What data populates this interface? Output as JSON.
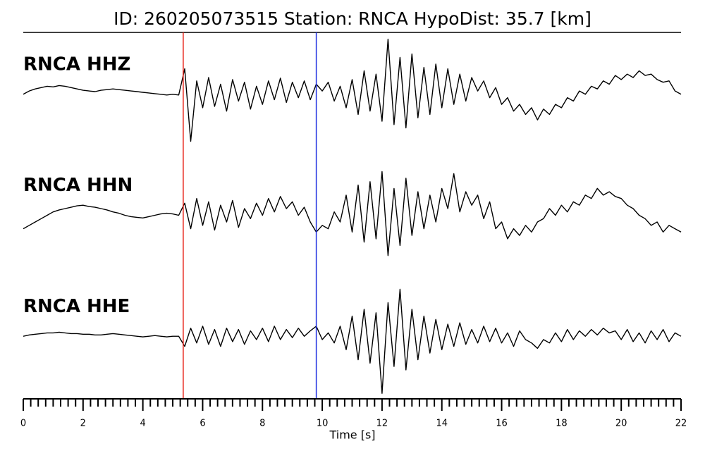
{
  "chart_data": {
    "type": "seismogram",
    "title": "ID: 260205073515   Station: RNCA   HypoDist:    35.7 [km]",
    "xlabel": "Time [s]",
    "xlim": [
      0,
      22
    ],
    "xticks": [
      0,
      2,
      4,
      6,
      8,
      10,
      12,
      14,
      16,
      18,
      20,
      22
    ],
    "xticks_minor": [
      0.25,
      0.5,
      0.75,
      1,
      1.25,
      1.5,
      1.75,
      2.25,
      2.5,
      2.75,
      3,
      3.25,
      3.5,
      3.75,
      4.25,
      4.5,
      4.75,
      5,
      5.25,
      5.5,
      5.75,
      6.25,
      6.5,
      6.75,
      7,
      7.25,
      7.5,
      7.75,
      8.25,
      8.5,
      8.75,
      9,
      9.25,
      9.5,
      9.75,
      10.25,
      10.5,
      10.75,
      11,
      11.25,
      11.5,
      11.75,
      12.25,
      12.5,
      12.75,
      13,
      13.25,
      13.5,
      13.75,
      14.25,
      14.5,
      14.75,
      15,
      15.25,
      15.5,
      15.75,
      16.25,
      16.5,
      16.75,
      17,
      17.25,
      17.5,
      17.75,
      18.25,
      18.5,
      18.75,
      19,
      19.25,
      19.5,
      19.75,
      20.25,
      20.5,
      20.75,
      21,
      21.25,
      21.5,
      21.75
    ],
    "ylim": [
      -90,
      90
    ],
    "label_color": "#4c9a0a",
    "line_color": "#000000",
    "picks": [
      {
        "x": 5.35,
        "color": "#e8261c"
      },
      {
        "x": 9.8,
        "color": "#1f2fe0"
      }
    ],
    "x": [
      0,
      0.2,
      0.4,
      0.6,
      0.8,
      1,
      1.2,
      1.4,
      1.6,
      1.8,
      2,
      2.2,
      2.4,
      2.6,
      2.8,
      3,
      3.2,
      3.4,
      3.6,
      3.8,
      4,
      4.2,
      4.4,
      4.6,
      4.8,
      5,
      5.2,
      5.4,
      5.6,
      5.8,
      6,
      6.2,
      6.4,
      6.6,
      6.8,
      7,
      7.2,
      7.4,
      7.6,
      7.8,
      8,
      8.2,
      8.4,
      8.6,
      8.8,
      9,
      9.2,
      9.4,
      9.6,
      9.8,
      10,
      10.2,
      10.4,
      10.6,
      10.8,
      11,
      11.2,
      11.4,
      11.6,
      11.8,
      12,
      12.2,
      12.4,
      12.6,
      12.8,
      13,
      13.2,
      13.4,
      13.6,
      13.8,
      14,
      14.2,
      14.4,
      14.6,
      14.8,
      15,
      15.2,
      15.4,
      15.6,
      15.8,
      16,
      16.2,
      16.4,
      16.6,
      16.8,
      17,
      17.2,
      17.4,
      17.6,
      17.8,
      18,
      18.2,
      18.4,
      18.6,
      18.8,
      19,
      19.2,
      19.4,
      19.6,
      19.8,
      20,
      20.2,
      20.4,
      20.6,
      20.8,
      21,
      21.2,
      21.4,
      21.6,
      21.8,
      22
    ],
    "series": [
      {
        "name": "RNCA HHZ",
        "values": [
          0,
          5,
          8,
          10,
          12,
          11,
          13,
          12,
          10,
          8,
          6,
          5,
          4,
          6,
          7,
          8,
          7,
          6,
          5,
          4,
          3,
          2,
          1,
          0,
          -1,
          0,
          -1,
          38,
          -70,
          20,
          -20,
          25,
          -18,
          15,
          -25,
          22,
          -10,
          18,
          -22,
          12,
          -15,
          20,
          -8,
          24,
          -12,
          18,
          -5,
          20,
          -8,
          15,
          5,
          18,
          -10,
          12,
          -20,
          22,
          -30,
          35,
          -25,
          30,
          -40,
          82,
          -45,
          55,
          -50,
          60,
          -35,
          40,
          -30,
          45,
          -20,
          38,
          -15,
          30,
          -10,
          25,
          5,
          20,
          -5,
          10,
          -15,
          -5,
          -25,
          -15,
          -30,
          -20,
          -38,
          -22,
          -30,
          -15,
          -20,
          -5,
          -10,
          5,
          0,
          12,
          8,
          20,
          15,
          28,
          22,
          30,
          25,
          35,
          28,
          30,
          22,
          18,
          20,
          5,
          0
        ]
      },
      {
        "name": "RNCA HHN",
        "values": [
          -20,
          -15,
          -10,
          -5,
          0,
          5,
          8,
          10,
          12,
          14,
          15,
          13,
          12,
          10,
          8,
          5,
          3,
          0,
          -2,
          -3,
          -4,
          -2,
          0,
          2,
          3,
          2,
          0,
          18,
          -20,
          25,
          -15,
          20,
          -22,
          15,
          -10,
          22,
          -18,
          10,
          -5,
          18,
          0,
          25,
          5,
          28,
          10,
          20,
          0,
          12,
          -10,
          -25,
          -15,
          -20,
          5,
          -10,
          30,
          -25,
          45,
          -40,
          50,
          -35,
          65,
          -60,
          40,
          -45,
          55,
          -30,
          35,
          -20,
          30,
          -10,
          40,
          10,
          62,
          5,
          35,
          15,
          30,
          -5,
          20,
          -20,
          -10,
          -35,
          -20,
          -30,
          -15,
          -25,
          -10,
          -5,
          10,
          0,
          15,
          5,
          20,
          15,
          30,
          25,
          40,
          30,
          35,
          28,
          25,
          15,
          10,
          0,
          -5,
          -15,
          -10,
          -25,
          -15,
          -20,
          -25
        ]
      },
      {
        "name": "RNCA HHE",
        "values": [
          0,
          2,
          3,
          4,
          5,
          5,
          6,
          5,
          4,
          4,
          3,
          3,
          2,
          2,
          3,
          4,
          3,
          2,
          1,
          0,
          -1,
          0,
          1,
          0,
          -1,
          0,
          0,
          -15,
          12,
          -10,
          15,
          -12,
          10,
          -15,
          12,
          -8,
          10,
          -12,
          8,
          -5,
          12,
          -8,
          15,
          -5,
          10,
          -2,
          12,
          0,
          8,
          15,
          -5,
          5,
          -10,
          15,
          -20,
          30,
          -35,
          40,
          -40,
          35,
          -85,
          50,
          -45,
          70,
          -50,
          40,
          -35,
          30,
          -25,
          25,
          -20,
          18,
          -15,
          20,
          -12,
          10,
          -10,
          15,
          -8,
          12,
          -10,
          5,
          -15,
          8,
          -5,
          -10,
          -18,
          -5,
          -10,
          5,
          -8,
          10,
          -5,
          8,
          0,
          10,
          2,
          12,
          5,
          8,
          -5,
          10,
          -8,
          5,
          -10,
          8,
          -5,
          10,
          -8,
          5,
          0
        ]
      }
    ]
  }
}
